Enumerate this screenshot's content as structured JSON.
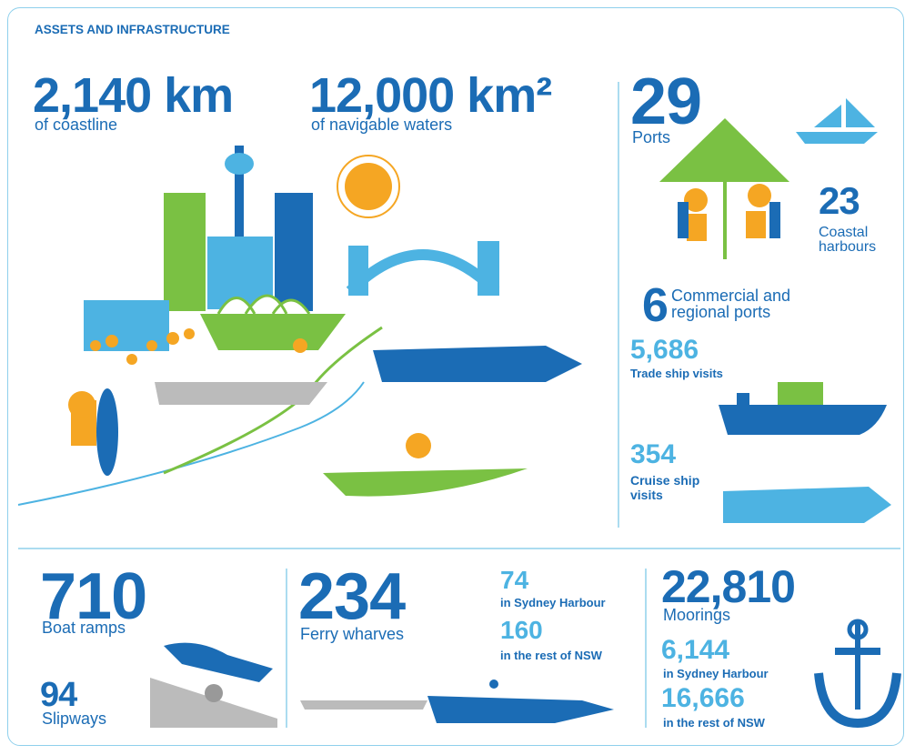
{
  "title": "ASSETS AND INFRASTRUCTURE",
  "coastline": {
    "value": "2,140 km",
    "label": "of coastline"
  },
  "waters": {
    "value": "12,000 km²",
    "label": "of navigable waters"
  },
  "ports": {
    "value": "29",
    "label": "Ports"
  },
  "harbours": {
    "value": "23",
    "label": "Coastal harbours"
  },
  "commercial": {
    "value": "6",
    "label": "Commercial and regional ports"
  },
  "trade": {
    "value": "5,686",
    "label": "Trade ship visits"
  },
  "cruise": {
    "value": "354",
    "label": "Cruise ship visits"
  },
  "boat_ramps": {
    "value": "710",
    "label": "Boat ramps"
  },
  "slipways": {
    "value": "94",
    "label": "Slipways"
  },
  "ferry": {
    "value": "234",
    "label": "Ferry wharves",
    "sydney": {
      "value": "74",
      "label": "in Sydney Harbour"
    },
    "rest": {
      "value": "160",
      "label": "in the rest of NSW"
    }
  },
  "moorings": {
    "value": "22,810",
    "label": "Moorings",
    "sydney": {
      "value": "6,144",
      "label": "in Sydney Harbour"
    },
    "rest": {
      "value": "16,666",
      "label": "in the rest of NSW"
    }
  }
}
